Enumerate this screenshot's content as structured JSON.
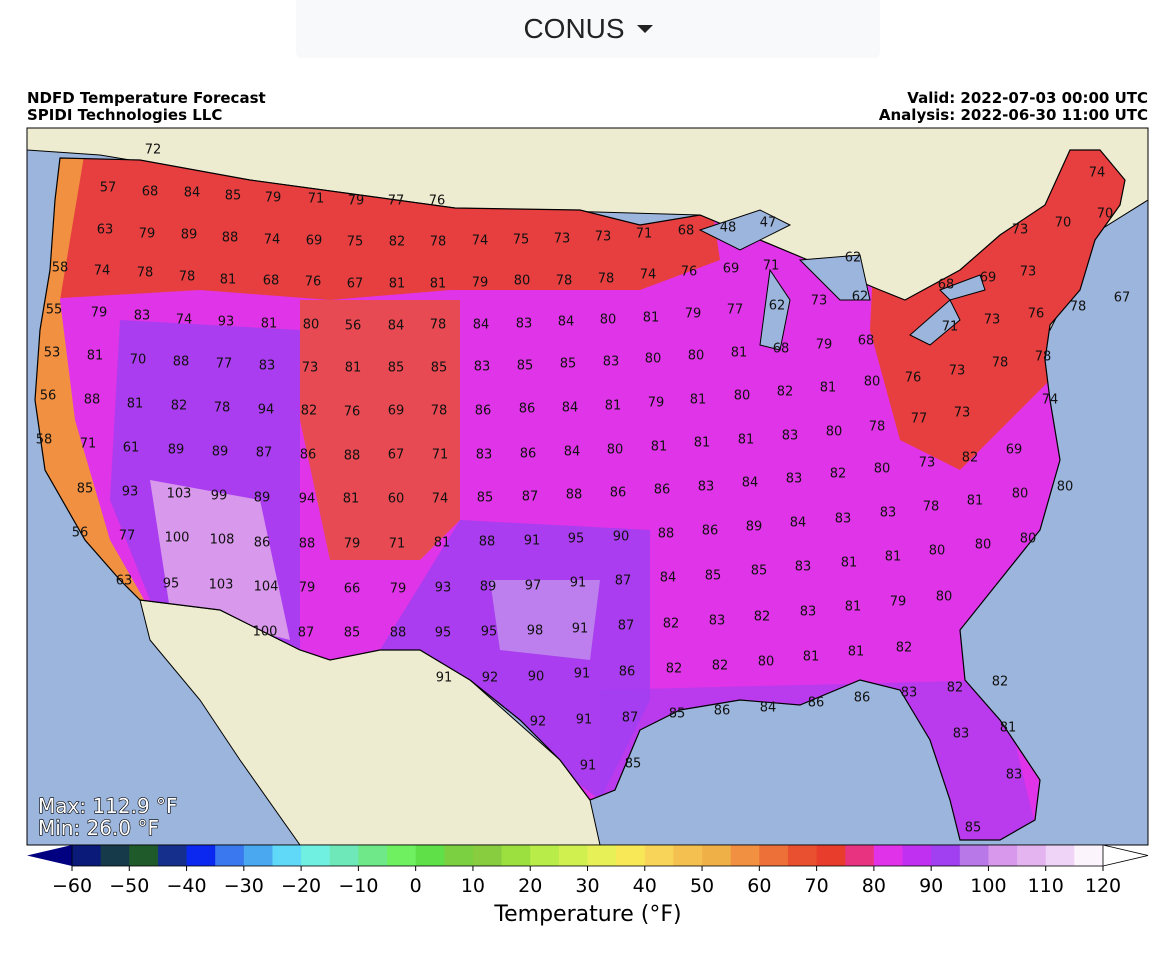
{
  "header": {
    "dropdown": "CONUS"
  },
  "map": {
    "title": "NDFD Temperature Forecast",
    "credit": "SPIDI Technologies LLC",
    "valid": "Valid: 2022-07-03 00:00 UTC",
    "analysis": "Analysis: 2022-06-30 11:00 UTC",
    "max": "Max: 112.9 °F",
    "min": "Min: 26.0 °F",
    "labels": [
      72,
      57,
      68,
      84,
      85,
      79,
      71,
      79,
      77,
      76,
      63,
      79,
      89,
      88,
      74,
      69,
      75,
      82,
      78,
      74,
      75,
      73,
      73,
      71,
      68,
      48,
      47,
      73,
      70,
      74,
      70,
      58,
      74,
      78,
      78,
      81,
      68,
      76,
      67,
      81,
      81,
      79,
      80,
      78,
      78,
      74,
      76,
      69,
      71,
      62,
      68,
      69,
      73,
      55,
      79,
      83,
      74,
      93,
      81,
      80,
      56,
      84,
      78,
      84,
      83,
      84,
      80,
      81,
      79,
      77,
      62,
      73,
      62,
      71,
      73,
      76,
      78,
      67,
      53,
      81,
      70,
      88,
      77,
      83,
      73,
      81,
      85,
      85,
      83,
      85,
      85,
      83,
      80,
      80,
      81,
      68,
      79,
      68,
      80,
      76,
      73,
      78,
      78,
      56,
      88,
      81,
      82,
      78,
      94,
      82,
      76,
      69,
      78,
      86,
      86,
      84,
      81,
      79,
      81,
      80,
      82,
      81,
      77,
      73,
      74,
      58,
      71,
      61,
      89,
      89,
      87,
      86,
      88,
      67,
      71,
      83,
      86,
      84,
      80,
      81,
      81,
      81,
      83,
      80,
      78,
      82,
      69,
      85,
      93,
      103,
      99,
      89,
      94,
      81,
      60,
      74,
      85,
      87,
      88,
      86,
      86,
      83,
      84,
      83,
      82,
      80,
      73,
      78,
      81,
      80,
      80,
      56,
      77,
      100,
      108,
      86,
      88,
      79,
      71,
      81,
      88,
      91,
      95,
      90,
      88,
      86,
      89,
      84,
      83,
      83,
      80,
      80,
      80,
      63,
      95,
      103,
      104,
      79,
      66,
      79,
      93,
      89,
      97,
      91,
      87,
      84,
      85,
      85,
      83,
      81,
      81,
      79,
      80,
      100,
      87,
      85,
      88,
      95,
      95,
      98,
      91,
      87,
      82,
      83,
      82,
      83,
      81,
      91,
      92,
      90,
      91,
      86,
      82,
      82,
      80,
      81,
      81,
      82,
      92,
      91,
      87,
      85,
      86,
      84,
      86,
      86,
      83,
      82,
      82,
      91,
      85,
      83,
      81,
      83,
      85
    ]
  },
  "colorbar": {
    "label": "Temperature (°F)",
    "range": [
      -60,
      120
    ],
    "ticks": [
      {
        "value": -60,
        "label": "−60"
      },
      {
        "value": -50,
        "label": "−50"
      },
      {
        "value": -40,
        "label": "−40"
      },
      {
        "value": -30,
        "label": "−30"
      },
      {
        "value": -20,
        "label": "−20"
      },
      {
        "value": -10,
        "label": "−10"
      },
      0,
      10,
      20,
      30,
      40,
      50,
      60,
      70,
      80,
      90,
      100,
      110,
      120
    ],
    "colors": [
      "#0a1a78",
      "#173a4a",
      "#1e5a2a",
      "#14308c",
      "#0a28f0",
      "#3a78f0",
      "#4aa8f0",
      "#60d8f8",
      "#70f0e0",
      "#6ee8b8",
      "#6ee888",
      "#6ef060",
      "#60e048",
      "#7ad040",
      "#88cc40",
      "#9ce040",
      "#b8ec48",
      "#d0f050",
      "#e8f058",
      "#f8e858",
      "#f8d458",
      "#f4c050",
      "#f0b048",
      "#f09040",
      "#ec7038",
      "#e85030",
      "#e83c2c",
      "#e83480",
      "#e032e8",
      "#c030f0",
      "#a040f0",
      "#b878e8",
      "#d898ec",
      "#e4b4f0",
      "#f0d4f8",
      "#fcf4fc"
    ],
    "extend_colors": [
      "#000080",
      "#ffffff"
    ]
  }
}
